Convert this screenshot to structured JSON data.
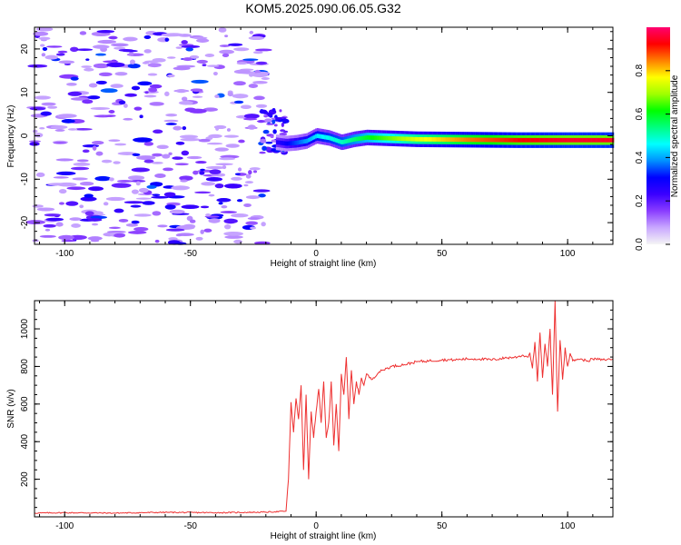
{
  "title": "KOM5.2025.090.06.05.G32",
  "chart_data": [
    {
      "type": "heatmap",
      "xlabel": "Height of straight line (km)",
      "ylabel": "Frequency (Hz)",
      "xlim": [
        -112,
        118
      ],
      "ylim": [
        -25,
        25
      ],
      "xticks": [
        -100,
        -50,
        0,
        50,
        100
      ],
      "yticks": [
        -20,
        -10,
        0,
        10,
        20
      ],
      "colorbar": {
        "label": "Normalized spectral amplitude",
        "range": [
          0,
          1
        ],
        "ticks": [
          0.0,
          0.2,
          0.4,
          0.6,
          0.8
        ],
        "colormap": [
          "#f5f5f5",
          "#c9a8ff",
          "#8a3dff",
          "#3a00ff",
          "#0000ff",
          "#0090ff",
          "#00ffff",
          "#00ff80",
          "#00ff00",
          "#a0ff00",
          "#ffff00",
          "#ff8000",
          "#ff0000",
          "#ff0070"
        ]
      },
      "ridge": [
        {
          "x": -16,
          "y": -1.5
        },
        {
          "x": -12,
          "y": -1.8
        },
        {
          "x": -8,
          "y": -1.6
        },
        {
          "x": -4,
          "y": -1.2
        },
        {
          "x": 0,
          "y": 0.0
        },
        {
          "x": 5,
          "y": -0.5
        },
        {
          "x": 10,
          "y": -1.5
        },
        {
          "x": 15,
          "y": -0.8
        },
        {
          "x": 20,
          "y": -0.4
        },
        {
          "x": 30,
          "y": -0.6
        },
        {
          "x": 40,
          "y": -0.8
        },
        {
          "x": 60,
          "y": -0.9
        },
        {
          "x": 80,
          "y": -1.0
        },
        {
          "x": 100,
          "y": -1.0
        },
        {
          "x": 118,
          "y": -1.0
        }
      ],
      "ridge_amplitude": [
        {
          "x": -16,
          "v": 0.25
        },
        {
          "x": -8,
          "v": 0.35
        },
        {
          "x": 0,
          "v": 0.45
        },
        {
          "x": 10,
          "v": 0.5
        },
        {
          "x": 20,
          "v": 0.6
        },
        {
          "x": 40,
          "v": 0.75
        },
        {
          "x": 60,
          "v": 0.85
        },
        {
          "x": 80,
          "v": 0.92
        },
        {
          "x": 100,
          "v": 0.95
        },
        {
          "x": 118,
          "v": 0.95
        }
      ],
      "noise_region_x": [
        -112,
        -20
      ]
    },
    {
      "type": "line",
      "xlabel": "Height of straight line (km)",
      "ylabel": "SNR (v/v)",
      "xlim": [
        -112,
        118
      ],
      "ylim": [
        0,
        1150
      ],
      "xticks": [
        -100,
        -50,
        0,
        50,
        100
      ],
      "yticks": [
        200,
        400,
        600,
        800,
        1000
      ],
      "color": "#ee3030",
      "series": [
        {
          "x": [
            -112,
            -100,
            -80,
            -60,
            -40,
            -20,
            -12,
            -11,
            -10,
            -9,
            -8,
            -7,
            -6,
            -5,
            -4,
            -3,
            -2,
            -1,
            0,
            1,
            2,
            3,
            4,
            5,
            6,
            7,
            8,
            9,
            10,
            11,
            12,
            13,
            14,
            15,
            16,
            17,
            18,
            19,
            20,
            22,
            25,
            28,
            30,
            35,
            40,
            45,
            50,
            55,
            60,
            65,
            70,
            75,
            80,
            82,
            84,
            85,
            86,
            87,
            88,
            89,
            90,
            91,
            92,
            93,
            94,
            95,
            96,
            97,
            98,
            99,
            100,
            101,
            102,
            104,
            106,
            108,
            110,
            114,
            118
          ],
          "values": [
            20,
            22,
            20,
            24,
            22,
            25,
            30,
            200,
            610,
            450,
            630,
            520,
            700,
            250,
            650,
            200,
            560,
            420,
            560,
            680,
            500,
            720,
            420,
            500,
            720,
            380,
            600,
            350,
            760,
            650,
            850,
            520,
            780,
            600,
            720,
            650,
            740,
            700,
            760,
            730,
            770,
            790,
            800,
            810,
            825,
            830,
            835,
            835,
            840,
            840,
            835,
            845,
            850,
            860,
            850,
            870,
            790,
            930,
            720,
            980,
            740,
            920,
            800,
            1000,
            650,
            1150,
            560,
            940,
            730,
            900,
            800,
            870,
            830,
            840,
            835,
            830,
            840,
            835,
            840
          ]
        }
      ]
    }
  ]
}
